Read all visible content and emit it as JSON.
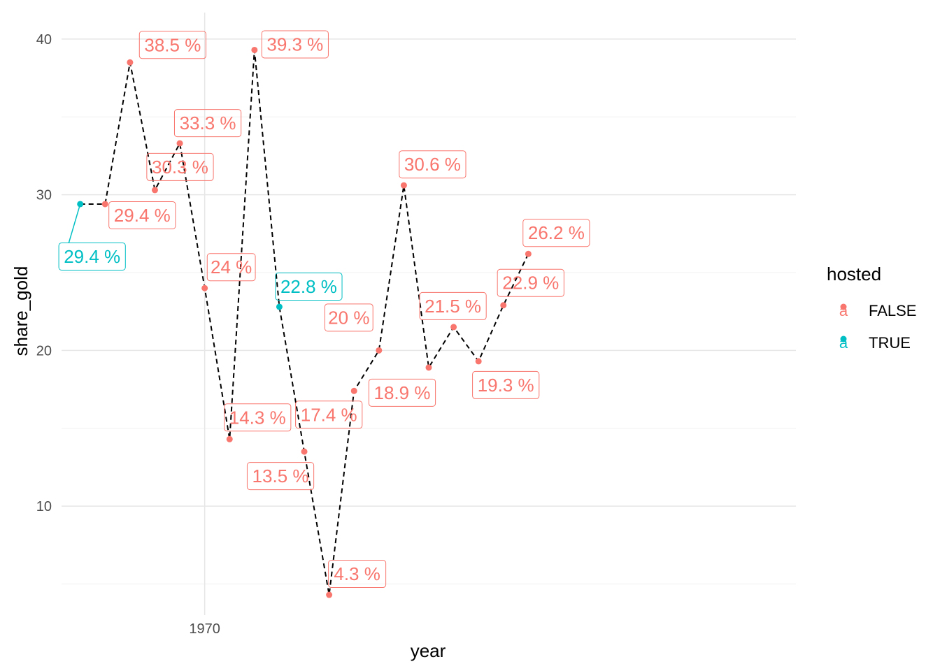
{
  "chart_data": {
    "type": "scatter",
    "xlabel": "year",
    "ylabel": "share_gold",
    "x_ticks": [
      1970
    ],
    "y_ticks": [
      10,
      20,
      30,
      40
    ],
    "xlim": [
      1958.5,
      2017.5
    ],
    "ylim": [
      3,
      41.7
    ],
    "grid": true,
    "line_style": "dashed",
    "line_color": "#000000",
    "legend": {
      "title": "hosted",
      "position": "right",
      "entries": [
        {
          "label": "FALSE",
          "color": "#F8766D",
          "glyph": "a"
        },
        {
          "label": "TRUE",
          "color": "#00BFC4",
          "glyph": "a"
        }
      ]
    },
    "points": [
      {
        "x": 1960,
        "y": 29.4,
        "hosted": "TRUE",
        "label": "29.4 %"
      },
      {
        "x": 1962,
        "y": 29.4,
        "hosted": "FALSE",
        "label": "29.4 %"
      },
      {
        "x": 1964,
        "y": 38.5,
        "hosted": "FALSE",
        "label": "38.5 %"
      },
      {
        "x": 1966,
        "y": 30.3,
        "hosted": "FALSE",
        "label": "30.3 %"
      },
      {
        "x": 1968,
        "y": 33.3,
        "hosted": "FALSE",
        "label": "33.3 %"
      },
      {
        "x": 1970,
        "y": 24.0,
        "hosted": "FALSE",
        "label": "24 %"
      },
      {
        "x": 1972,
        "y": 14.3,
        "hosted": "FALSE",
        "label": "14.3 %"
      },
      {
        "x": 1974,
        "y": 39.3,
        "hosted": "FALSE",
        "label": "39.3 %"
      },
      {
        "x": 1976,
        "y": 22.8,
        "hosted": "TRUE",
        "label": "22.8 %"
      },
      {
        "x": 1978,
        "y": 13.5,
        "hosted": "FALSE",
        "label": "13.5 %"
      },
      {
        "x": 1980,
        "y": 4.3,
        "hosted": "FALSE",
        "label": "4.3 %"
      },
      {
        "x": 1982,
        "y": 17.4,
        "hosted": "FALSE",
        "label": "17.4 %"
      },
      {
        "x": 1984,
        "y": 20.0,
        "hosted": "FALSE",
        "label": "20 %"
      },
      {
        "x": 1986,
        "y": 30.6,
        "hosted": "FALSE",
        "label": "30.6 %"
      },
      {
        "x": 1988,
        "y": 18.9,
        "hosted": "FALSE",
        "label": "18.9 %"
      },
      {
        "x": 1990,
        "y": 21.5,
        "hosted": "FALSE",
        "label": "21.5 %"
      },
      {
        "x": 1992,
        "y": 19.3,
        "hosted": "FALSE",
        "label": "19.3 %"
      },
      {
        "x": 1994,
        "y": 22.9,
        "hosted": "FALSE",
        "label": "22.9 %"
      },
      {
        "x": 1996,
        "y": 26.2,
        "hosted": "FALSE",
        "label": "26.2 %"
      }
    ]
  }
}
